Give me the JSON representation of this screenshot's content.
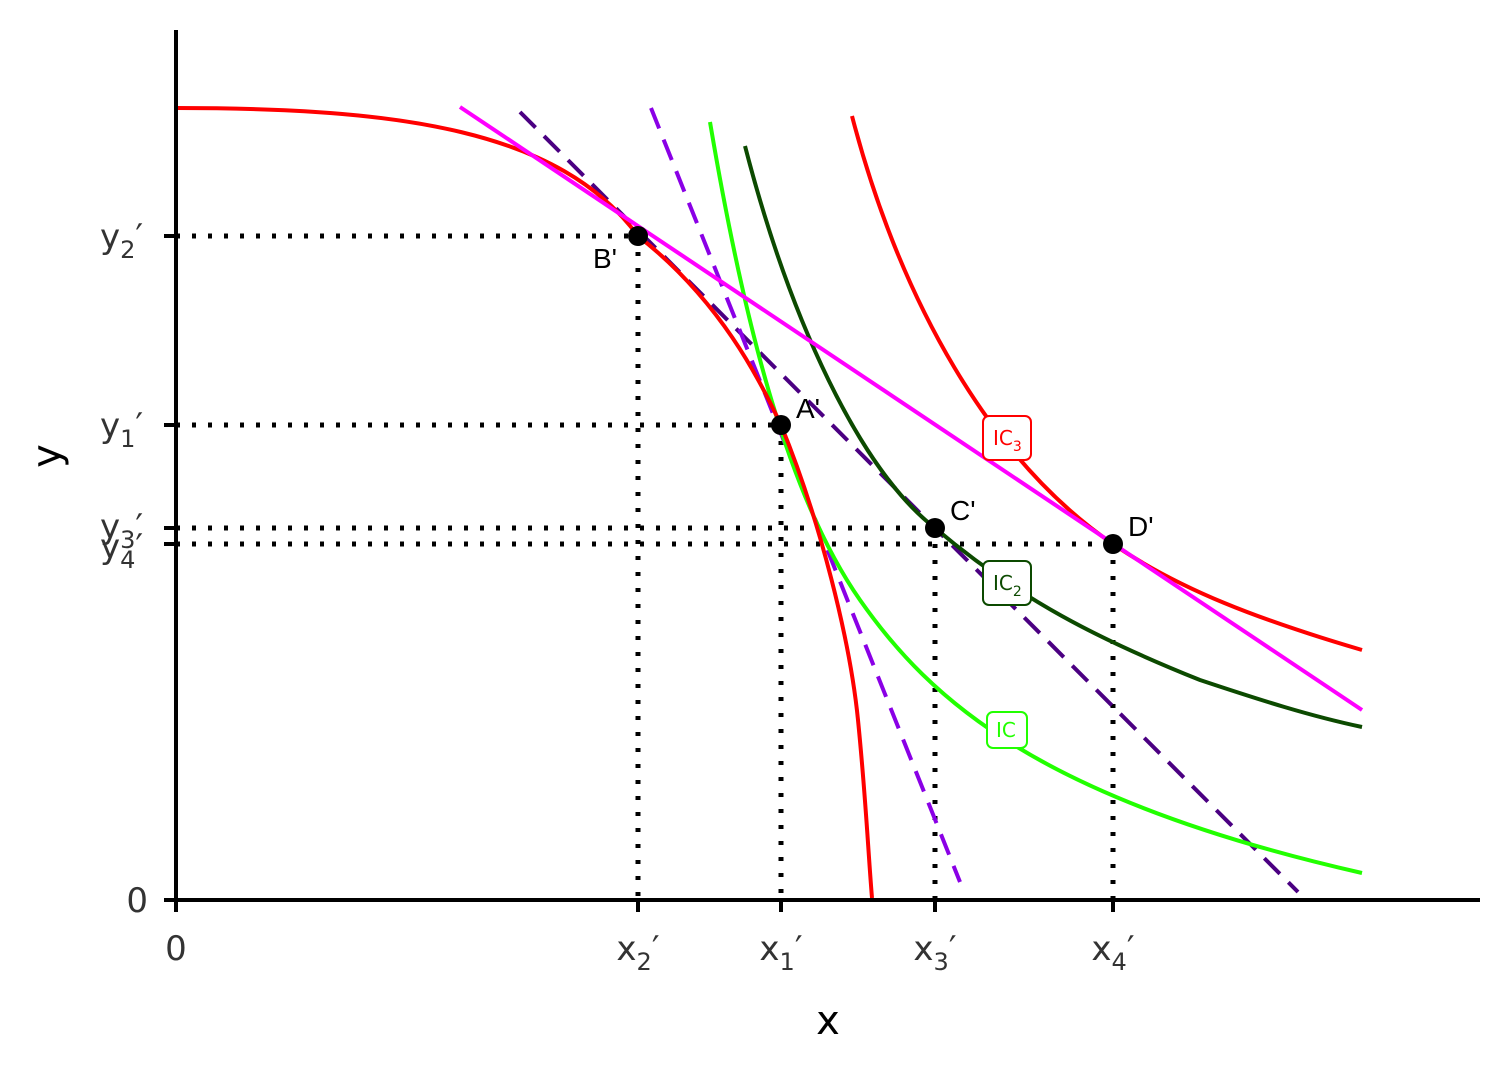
{
  "colors": {
    "ppf": "#ff0000",
    "ic": "#22ff00",
    "ic2": "#0c4a00",
    "ic3": "#ff0000",
    "price_line": "#ff00ff",
    "dashed_dark": "#4b0082",
    "dashed_violet": "#8a00e6",
    "guide": "#000000",
    "point": "#000000",
    "axis": "#000000"
  },
  "axes": {
    "x_title": "x",
    "y_title": "y",
    "origin_x_label": "0",
    "origin_y_label": "0"
  },
  "x_ticks": [
    {
      "id": "x2",
      "base": "x",
      "sub": "2",
      "prime": "′"
    },
    {
      "id": "x1",
      "base": "x",
      "sub": "1",
      "prime": "′"
    },
    {
      "id": "x3",
      "base": "x",
      "sub": "3",
      "prime": "′"
    },
    {
      "id": "x4",
      "base": "x",
      "sub": "4",
      "prime": "′"
    }
  ],
  "y_ticks": [
    {
      "id": "y2",
      "base": "y",
      "sub": "2",
      "prime": "′"
    },
    {
      "id": "y1",
      "base": "y",
      "sub": "1",
      "prime": "′"
    },
    {
      "id": "y3",
      "base": "y",
      "sub": "3",
      "prime": "′"
    },
    {
      "id": "y4",
      "base": "y",
      "sub": "4",
      "prime": "′"
    }
  ],
  "points": [
    {
      "id": "B",
      "label": "B'"
    },
    {
      "id": "A",
      "label": "A'"
    },
    {
      "id": "C",
      "label": "C'"
    },
    {
      "id": "D",
      "label": "D'"
    }
  ],
  "curve_labels": [
    {
      "id": "ic3",
      "base": "IC",
      "sub": "3"
    },
    {
      "id": "ic2",
      "base": "IC",
      "sub": "2"
    },
    {
      "id": "ic",
      "base": "IC",
      "sub": ""
    }
  ]
}
